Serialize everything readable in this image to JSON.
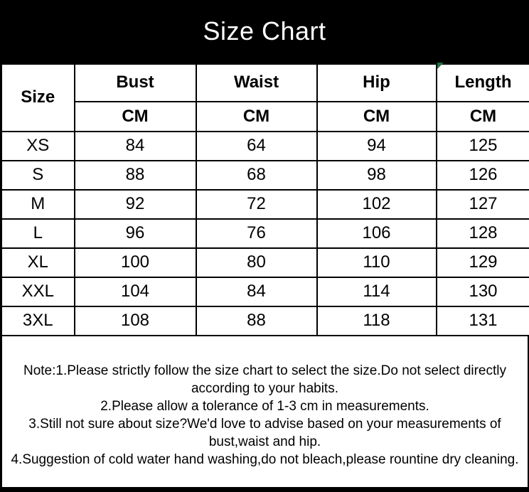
{
  "banner": {
    "title": "Size Chart"
  },
  "size_table": {
    "corner_header": "Size",
    "columns": [
      "Bust",
      "Waist",
      "Hip",
      "Length"
    ],
    "units": [
      "CM",
      "CM",
      "CM",
      "CM"
    ],
    "rows": [
      [
        "XS",
        "84",
        "64",
        "94",
        "125"
      ],
      [
        "S",
        "88",
        "68",
        "98",
        "126"
      ],
      [
        "M",
        "92",
        "72",
        "102",
        "127"
      ],
      [
        "L",
        "96",
        "76",
        "106",
        "128"
      ],
      [
        "XL",
        "100",
        "80",
        "110",
        "129"
      ],
      [
        "XXL",
        "104",
        "84",
        "114",
        "130"
      ],
      [
        "3XL",
        "108",
        "88",
        "118",
        "131"
      ]
    ]
  },
  "notes": {
    "lines": [
      "Note:1.Please strictly follow the size chart to select the size.Do not select directly",
      "according to your habits.",
      "2.Please allow a tolerance of 1-3 cm in measurements.",
      "3.Still not sure about size?We'd love to advise based on your measurements of",
      "bust,waist and hip.",
      "4.Suggestion of cold water hand washing,do not bleach,please rountine dry cleaning."
    ]
  },
  "colors": {
    "banner_background": "#000000",
    "banner_text": "#ffffff",
    "table_border": "#000000",
    "body_text": "#000000",
    "corner_flag_green": "#1e7145",
    "page_background": "#ffffff"
  }
}
